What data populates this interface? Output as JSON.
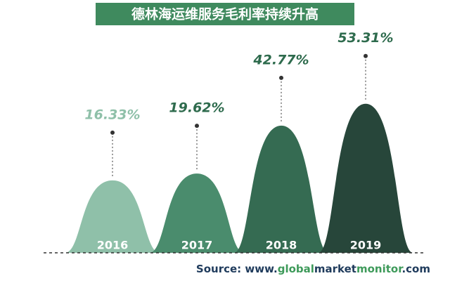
{
  "chart_data": {
    "type": "bell",
    "title": "德林海运维服务毛利率持续升高",
    "categories": [
      "2016",
      "2017",
      "2018",
      "2019"
    ],
    "values": [
      16.33,
      19.62,
      42.77,
      53.31
    ],
    "value_labels": [
      "16.33%",
      "19.62%",
      "42.77%",
      "53.31%"
    ],
    "colors": [
      "#8fc0a9",
      "#4a8c6d",
      "#356b52",
      "#27463a"
    ],
    "source": [
      "Source: www.",
      "global",
      "market",
      "monitor",
      ".com"
    ]
  }
}
